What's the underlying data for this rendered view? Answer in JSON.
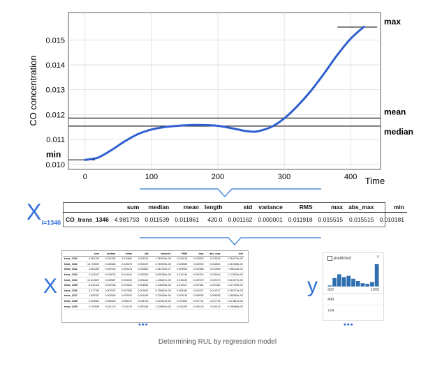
{
  "chart_data": {
    "type": "line",
    "xlabel": "Time",
    "ylabel": "CO concentration",
    "xlim": [
      -25,
      445
    ],
    "ylim": [
      0.0098,
      0.0161
    ],
    "x_ticks": [
      0,
      100,
      200,
      300,
      400
    ],
    "y_ticks": [
      0.01,
      0.011,
      0.012,
      0.013,
      0.014,
      0.015
    ],
    "y_tick_labels": [
      "0.010",
      "0.011",
      "0.012",
      "0.013",
      "0.014",
      "0.015"
    ],
    "x_tick_labels": [
      "0",
      "100",
      "200",
      "300",
      "400"
    ],
    "series": [
      {
        "x": [
          0,
          20,
          40,
          60,
          80,
          100,
          120,
          140,
          160,
          180,
          200,
          220,
          240,
          250,
          260,
          280,
          300,
          320,
          340,
          360,
          380,
          400,
          420
        ],
        "y": [
          0.01018,
          0.01028,
          0.01058,
          0.01093,
          0.01122,
          0.0114,
          0.0115,
          0.01155,
          0.01158,
          0.01158,
          0.01155,
          0.01146,
          0.01135,
          0.01132,
          0.01133,
          0.0115,
          0.01185,
          0.01235,
          0.01295,
          0.01365,
          0.0144,
          0.01505,
          0.01553
        ]
      }
    ],
    "color": "#2f5fd0",
    "reference_lines": [
      {
        "label": "max",
        "y": 0.015515
      },
      {
        "label": "mean",
        "y": 0.011861
      },
      {
        "label": "median",
        "y": 0.011539
      },
      {
        "label": "min",
        "y": 0.010181
      }
    ]
  },
  "middle_table": {
    "x_label": "X",
    "x_subscript": "i=1346",
    "columns": [
      "",
      "sum",
      "median",
      "mean",
      "length",
      "std",
      "variance",
      "RMS",
      "max",
      "abs_max",
      "min"
    ],
    "row": [
      "CO_trans_1346",
      "4.981793",
      "0.011539",
      "0.011861",
      "420.0",
      "0.001162",
      "0.000001",
      "0.011918",
      "0.015515",
      "0.015515",
      "0.010181"
    ]
  },
  "x_table": {
    "label": "X",
    "columns": [
      "",
      "sum",
      "median",
      "mean",
      "std",
      "variance",
      "RMS",
      "max",
      "abs_max",
      "min"
    ],
    "rows": [
      [
        "trans_1330",
        "4.981793",
        "0.011539",
        "0.011861",
        "0.001162",
        "1.349253e-06",
        "0.011918",
        "0.015515",
        "0.015515",
        "1.018176e-02"
      ],
      [
        "trans_1331",
        "10.700509",
        "0.024666",
        "0.025476",
        "0.002287",
        "5.745593e-06",
        "0.025589",
        "0.032900",
        "0.032891",
        "2.210186e-02"
      ],
      [
        "trans_1332",
        "3.861289",
        "0.009190",
        "0.009476",
        "0.002882",
        "4.944783e-07",
        "0.009508",
        "0.010968",
        "0.010969",
        "7.956444e-03"
      ],
      [
        "trans_1333",
        "6.110347",
        "0.013679",
        "0.014541",
        "0.002380",
        "5.692950e-06",
        "0.014749",
        "0.021604",
        "0.021604",
        "1.173833e-02"
      ],
      [
        "trans_1334",
        "12.613629",
        "0.029687",
        "0.030030",
        "0.003462",
        "1.198457e-05",
        "0.030230",
        "0.037679",
        "0.037679",
        "2.613972e-02"
      ],
      [
        "trans_1335",
        "8.132128",
        "0.019768",
        "0.019623",
        "0.004589",
        "2.106903e-05",
        "0.019327",
        "0.027381",
        "0.027381",
        "1.677349e-02"
      ],
      [
        "trans_1336",
        "3.177798",
        "0.007622",
        "0.007566",
        "0.002062",
        "6.756622e-06",
        "0.008183",
        "0.014217",
        "0.014217",
        "5.262274e-03"
      ],
      [
        "trans_1337",
        "1.525157",
        "0.003599",
        "0.003623",
        "0.001484",
        "2.203058e-06",
        "0.003915",
        "0.006052",
        "0.006052",
        "1.695383e-03"
      ],
      [
        "trans_1338",
        "2.634962",
        "0.006490",
        "0.006272",
        "0.004701",
        "2.229413e-05",
        "0.007800",
        "0.017731",
        "0.017731",
        "1.674814e-03"
      ],
      [
        "trans_1339",
        "4.700098",
        "0.011170",
        "0.011175",
        "0.000346",
        "1.200652e-06",
        "0.011293",
        "0.016120",
        "0.016120",
        "9.795968e-03"
      ]
    ]
  },
  "y_panel": {
    "label": "y",
    "header": "predicted",
    "histogram": [
      0.05,
      0.38,
      0.55,
      0.42,
      0.48,
      0.35,
      0.25,
      0.15,
      0.12,
      0.2,
      1.0
    ],
    "range_min": "302",
    "range_max": "1093",
    "values": [
      "498",
      "724"
    ]
  },
  "ellipsis": "•••",
  "caption": "Determining RUL by regression model"
}
